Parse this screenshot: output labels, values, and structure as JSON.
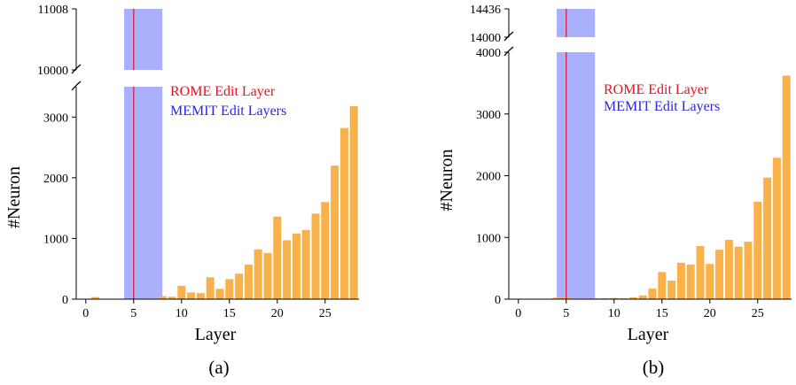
{
  "chart_data": [
    {
      "type": "bar",
      "caption": "(a)",
      "xlabel": "Layer",
      "ylabel": "#Neuron",
      "x": [
        0,
        1,
        2,
        3,
        4,
        5,
        6,
        7,
        8,
        9,
        10,
        11,
        12,
        13,
        14,
        15,
        16,
        17,
        18,
        19,
        20,
        21,
        22,
        23,
        24,
        25,
        26,
        27,
        28
      ],
      "values": [
        5,
        35,
        5,
        5,
        5,
        10,
        15,
        15,
        50,
        40,
        220,
        110,
        100,
        360,
        170,
        330,
        420,
        570,
        820,
        760,
        1360,
        970,
        1080,
        1140,
        1410,
        1600,
        2200,
        2820,
        3180
      ],
      "xticks": [
        "0",
        "5",
        "10",
        "15",
        "20",
        "25"
      ],
      "xlim": [
        -1,
        29
      ],
      "ylim_lower": [
        0,
        3500
      ],
      "yticks_lower": [
        "0",
        "1000",
        "2000",
        "3000"
      ],
      "ylim_upper": [
        10000,
        11008
      ],
      "yticks_upper": [
        "10000",
        "11008"
      ],
      "rome_edit_layer": 5,
      "memit_edit_layers": [
        4,
        8
      ],
      "legend": [
        "ROME Edit Layer",
        "MEMIT Edit Layers"
      ],
      "colors": {
        "bar": "#f9b14a",
        "rome": "#e8101c",
        "memit": "#aab0fb"
      }
    },
    {
      "type": "bar",
      "caption": "(b)",
      "xlabel": "Layer",
      "ylabel": "#Neuron",
      "x": [
        0,
        1,
        2,
        3,
        4,
        5,
        6,
        7,
        8,
        9,
        10,
        11,
        12,
        13,
        14,
        15,
        16,
        17,
        18,
        19,
        20,
        21,
        22,
        23,
        24,
        25,
        26,
        27,
        28
      ],
      "values": [
        5,
        5,
        5,
        5,
        25,
        35,
        15,
        15,
        15,
        15,
        20,
        15,
        30,
        60,
        170,
        440,
        300,
        590,
        560,
        860,
        570,
        800,
        960,
        850,
        930,
        1580,
        1970,
        2290,
        3620
      ],
      "xticks": [
        "0",
        "5",
        "10",
        "15",
        "20",
        "25"
      ],
      "xlim": [
        -1,
        29
      ],
      "ylim_lower": [
        0,
        4000
      ],
      "yticks_lower": [
        "0",
        "1000",
        "2000",
        "3000",
        "4000"
      ],
      "ylim_upper": [
        14000,
        14436
      ],
      "yticks_upper": [
        "14000",
        "14436"
      ],
      "rome_edit_layer": 5,
      "memit_edit_layers": [
        4,
        8
      ],
      "legend": [
        "ROME Edit Layer",
        "MEMIT Edit Layers"
      ],
      "colors": {
        "bar": "#f9b14a",
        "rome": "#e8101c",
        "memit": "#aab0fb"
      }
    }
  ]
}
